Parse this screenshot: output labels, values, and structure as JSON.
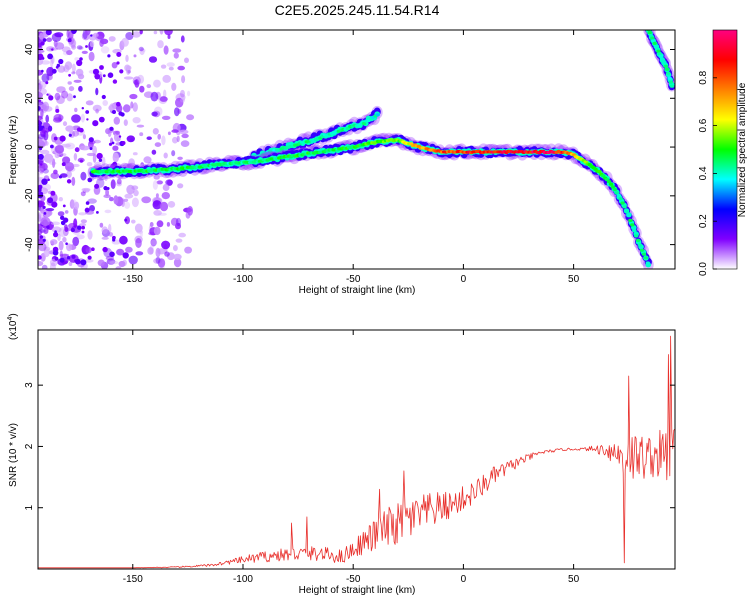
{
  "title": "C2E5.2025.245.11.54.R14",
  "chart_data": [
    {
      "type": "heatmap",
      "panel": "spectrogram",
      "xlabel": "Height of straight line (km)",
      "ylabel": "Frequency (Hz)",
      "xlim": [
        -193,
        96
      ],
      "ylim": [
        -50,
        48
      ],
      "xticks": [
        -150,
        -100,
        -50,
        0,
        50
      ],
      "yticks": [
        -40,
        -20,
        0,
        20,
        40
      ],
      "grid": false,
      "colorbar": {
        "label": "Normalized spectral amplitude",
        "range": [
          0,
          1
        ],
        "ticks": [
          0.0,
          0.2,
          0.4,
          0.6,
          0.8
        ],
        "tick_labels": [
          "0.0",
          "0.2",
          "0.4",
          "0.6",
          "0.8"
        ],
        "colormap": [
          "#ffffff",
          "#8000ff",
          "#0000ff",
          "#00ffff",
          "#00ff00",
          "#ffff00",
          "#ff8000",
          "#ff0000",
          "#ff0080"
        ]
      },
      "ridge_main": {
        "x": [
          -168,
          -150,
          -130,
          -110,
          -95,
          -80,
          -65,
          -50,
          -40,
          -30,
          -20,
          -10,
          0,
          10,
          20,
          30,
          40,
          45,
          50,
          55,
          60,
          65,
          70,
          75,
          80,
          84
        ],
        "y": [
          -10,
          -10,
          -9,
          -7,
          -6,
          -4,
          -2,
          0,
          2,
          3,
          0,
          -2,
          -2,
          -2,
          -2,
          -2,
          -2,
          -2,
          -3,
          -6,
          -9,
          -13,
          -19,
          -28,
          -40,
          -48
        ],
        "amplitude": [
          0.5,
          0.5,
          0.5,
          0.45,
          0.45,
          0.5,
          0.5,
          0.5,
          0.55,
          0.55,
          0.75,
          0.85,
          0.9,
          0.9,
          0.95,
          0.95,
          0.95,
          0.9,
          0.7,
          0.6,
          0.55,
          0.5,
          0.45,
          0.45,
          0.45,
          0.45
        ]
      },
      "ridge_upper": {
        "x": [
          -95,
          -80,
          -65,
          -55,
          -45,
          -38
        ],
        "y": [
          -4,
          0,
          4,
          7,
          10,
          14
        ],
        "amplitude": [
          0.4,
          0.45,
          0.45,
          0.45,
          0.45,
          0.4
        ]
      },
      "ridge_right": {
        "x": [
          84,
          88,
          92,
          95
        ],
        "y": [
          48,
          40,
          33,
          24
        ],
        "amplitude": [
          0.45,
          0.45,
          0.45,
          0.4
        ]
      }
    },
    {
      "type": "line",
      "panel": "snr",
      "xlabel": "Height of straight line (km)",
      "ylabel": "SNR (10 * v/v)",
      "y_multiplier_label": "(x10",
      "y_multiplier_exponent": "4",
      "xlim": [
        -193,
        96
      ],
      "ylim": [
        0,
        3.9
      ],
      "xticks": [
        -150,
        -100,
        -50,
        0,
        50
      ],
      "yticks": [
        1,
        2,
        3
      ],
      "line_color": "#e8302c",
      "grid": false,
      "series": [
        {
          "x": [
            -193,
            -170,
            -150,
            -130,
            -115,
            -105,
            -95,
            -85,
            -75,
            -65,
            -55,
            -45,
            -35,
            -25,
            -15,
            -5,
            5,
            15,
            25,
            35,
            45,
            55,
            65,
            75,
            85,
            96
          ],
          "y": [
            0.02,
            0.02,
            0.02,
            0.03,
            0.06,
            0.12,
            0.18,
            0.22,
            0.25,
            0.25,
            0.2,
            0.45,
            0.65,
            0.8,
            0.95,
            1.05,
            1.25,
            1.55,
            1.75,
            1.9,
            1.95,
            1.96,
            1.95,
            1.8,
            1.85,
            1.85
          ],
          "noise": [
            0,
            0,
            0,
            0.01,
            0.02,
            0.04,
            0.08,
            0.1,
            0.12,
            0.12,
            0.12,
            0.2,
            0.35,
            0.35,
            0.3,
            0.22,
            0.2,
            0.15,
            0.08,
            0.03,
            0.02,
            0.02,
            0.12,
            0.45,
            0.35,
            0.55
          ]
        }
      ],
      "spikes": [
        {
          "x": -78,
          "y": 0.75
        },
        {
          "x": -71,
          "y": 0.85
        },
        {
          "x": -38,
          "y": 1.3
        },
        {
          "x": -27,
          "y": 1.6
        },
        {
          "x": 73,
          "y": 0.1
        },
        {
          "x": 75,
          "y": 3.15
        },
        {
          "x": 93,
          "y": 3.5
        },
        {
          "x": 94,
          "y": 3.8
        }
      ]
    }
  ]
}
